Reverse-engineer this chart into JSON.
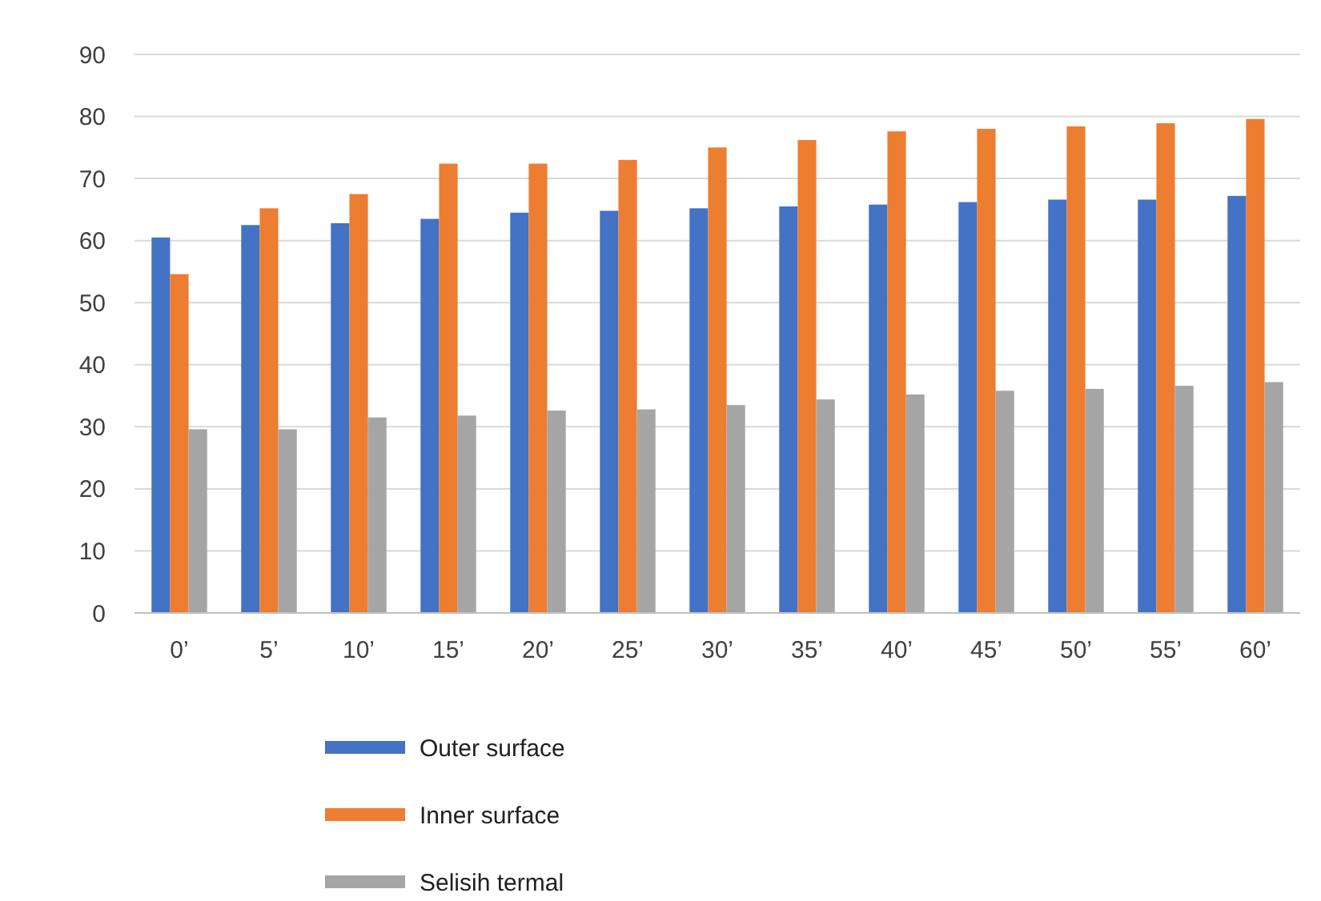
{
  "chart_data": {
    "type": "bar",
    "categories": [
      "0’",
      "5’",
      "10’",
      "15’",
      "20’",
      "25’",
      "30’",
      "35’",
      "40’",
      "45’",
      "50’",
      "55’",
      "60’"
    ],
    "series": [
      {
        "name": "Outer surface",
        "color": "#4472c4",
        "values": [
          60.5,
          62.5,
          62.8,
          63.5,
          64.5,
          64.8,
          65.2,
          65.5,
          65.8,
          66.2,
          66.6,
          66.6,
          67.2
        ]
      },
      {
        "name": "Inner surface",
        "color": "#ed7d31",
        "values": [
          54.6,
          65.2,
          67.5,
          72.4,
          72.4,
          73,
          75,
          76.2,
          77.6,
          78,
          78.4,
          78.9,
          79.6
        ]
      },
      {
        "name": "Selisih termal",
        "color": "#a5a5a5",
        "values": [
          29.6,
          29.6,
          31.5,
          31.8,
          32.6,
          32.8,
          33.5,
          34.4,
          35.2,
          35.8,
          36.1,
          36.6,
          37.2
        ]
      }
    ],
    "ylim": [
      0,
      90
    ],
    "yticks": [
      0,
      10,
      20,
      30,
      40,
      50,
      60,
      70,
      80,
      90
    ],
    "grid": "y",
    "legend": "bottom"
  }
}
